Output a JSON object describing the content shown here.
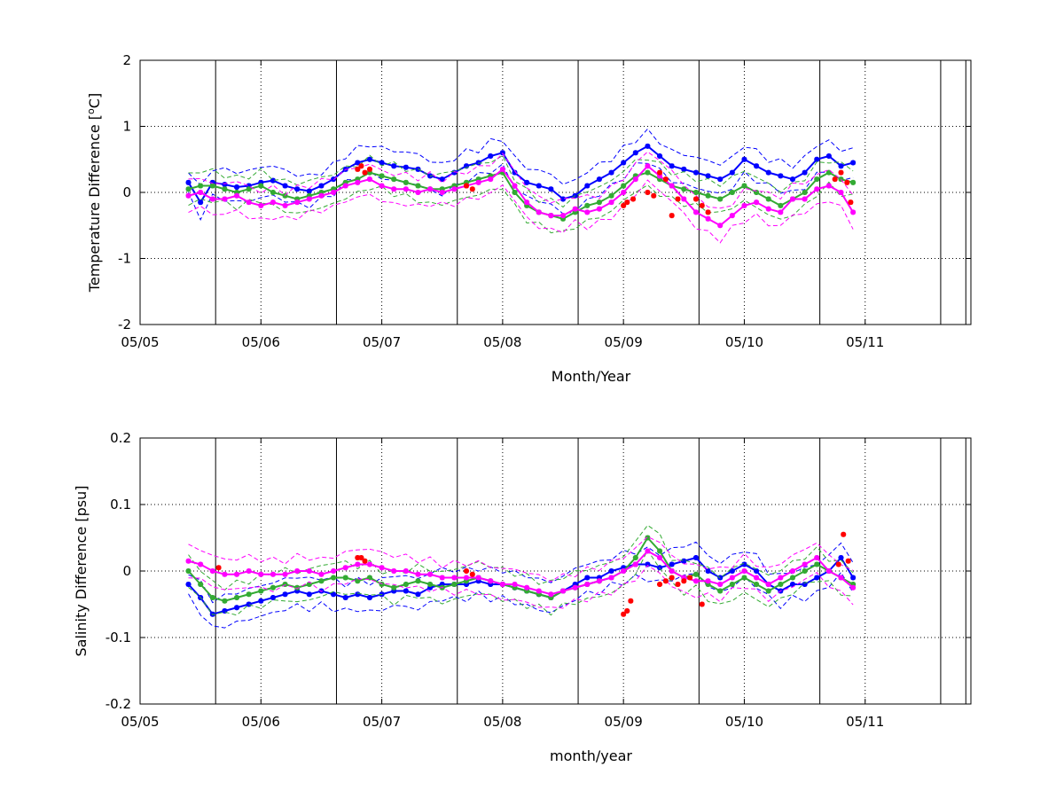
{
  "chart_data": [
    {
      "type": "line",
      "ylabel_main": "Temperature Difference [",
      "ylabel_sup": "o",
      "ylabel_end": "C]",
      "xlabel": "Month/Year",
      "x_ticks": [
        "05/05",
        "05/06",
        "05/07",
        "05/08",
        "05/09",
        "05/10",
        "05/11"
      ],
      "xlim": [
        2005.0,
        2011.875
      ],
      "y_ticks": [
        "-2",
        "-1",
        "0",
        "1",
        "2"
      ],
      "ylim": [
        -2,
        2
      ],
      "grid": true,
      "vertical_markers": [
        2005.625,
        2006.625,
        2007.625,
        2008.625,
        2009.625,
        2010.625,
        2011.625,
        2011.833
      ],
      "series": [
        {
          "color": "#0000ff",
          "marker": "*",
          "band": true,
          "x": [
            2005.4,
            2005.5,
            2005.6,
            2005.7,
            2005.8,
            2005.9,
            2006.0,
            2006.1,
            2006.2,
            2006.3,
            2006.4,
            2006.5,
            2006.6,
            2006.7,
            2006.8,
            2006.9,
            2007.0,
            2007.1,
            2007.2,
            2007.3,
            2007.4,
            2007.5,
            2007.6,
            2007.7,
            2007.8,
            2007.9,
            2008.0,
            2008.1,
            2008.2,
            2008.3,
            2008.4,
            2008.5,
            2008.6,
            2008.7,
            2008.8,
            2008.9,
            2009.0,
            2009.1,
            2009.2,
            2009.3,
            2009.4,
            2009.5,
            2009.6,
            2009.7,
            2009.8,
            2009.9,
            2010.0,
            2010.1,
            2010.2,
            2010.3,
            2010.4,
            2010.5,
            2010.6,
            2010.7,
            2010.8,
            2010.9
          ],
          "y": [
            0.15,
            -0.15,
            0.15,
            0.12,
            0.08,
            0.1,
            0.15,
            0.18,
            0.1,
            0.05,
            0.02,
            0.1,
            0.2,
            0.35,
            0.45,
            0.5,
            0.45,
            0.4,
            0.38,
            0.35,
            0.25,
            0.2,
            0.3,
            0.4,
            0.45,
            0.55,
            0.6,
            0.3,
            0.15,
            0.1,
            0.05,
            -0.1,
            -0.05,
            0.1,
            0.2,
            0.3,
            0.45,
            0.6,
            0.7,
            0.55,
            0.4,
            0.35,
            0.3,
            0.25,
            0.2,
            0.3,
            0.5,
            0.4,
            0.3,
            0.25,
            0.2,
            0.3,
            0.5,
            0.55,
            0.4,
            0.45
          ]
        },
        {
          "color": "#33aa33",
          "marker": "*",
          "band": true,
          "x": [
            2005.4,
            2005.5,
            2005.6,
            2005.7,
            2005.8,
            2005.9,
            2006.0,
            2006.1,
            2006.2,
            2006.3,
            2006.4,
            2006.5,
            2006.6,
            2006.7,
            2006.8,
            2006.9,
            2007.0,
            2007.1,
            2007.2,
            2007.3,
            2007.4,
            2007.5,
            2007.6,
            2007.7,
            2007.8,
            2007.9,
            2008.0,
            2008.1,
            2008.2,
            2008.3,
            2008.4,
            2008.5,
            2008.6,
            2008.7,
            2008.8,
            2008.9,
            2009.0,
            2009.1,
            2009.2,
            2009.3,
            2009.4,
            2009.5,
            2009.6,
            2009.7,
            2009.8,
            2009.9,
            2010.0,
            2010.1,
            2010.2,
            2010.3,
            2010.4,
            2010.5,
            2010.6,
            2010.7,
            2010.8,
            2010.9
          ],
          "y": [
            0.05,
            0.1,
            0.1,
            0.05,
            0.0,
            0.05,
            0.1,
            0.0,
            -0.05,
            -0.1,
            -0.05,
            0.0,
            0.05,
            0.15,
            0.2,
            0.3,
            0.25,
            0.2,
            0.15,
            0.1,
            0.05,
            0.05,
            0.1,
            0.15,
            0.2,
            0.25,
            0.3,
            0.0,
            -0.2,
            -0.3,
            -0.35,
            -0.4,
            -0.3,
            -0.2,
            -0.15,
            -0.05,
            0.1,
            0.25,
            0.3,
            0.2,
            0.1,
            0.05,
            0.0,
            -0.05,
            -0.1,
            0.0,
            0.1,
            0.0,
            -0.1,
            -0.2,
            -0.1,
            0.0,
            0.2,
            0.3,
            0.2,
            0.15
          ]
        },
        {
          "color": "#ff00ff",
          "marker": "*",
          "band": true,
          "x": [
            2005.4,
            2005.5,
            2005.6,
            2005.7,
            2005.8,
            2005.9,
            2006.0,
            2006.1,
            2006.2,
            2006.3,
            2006.4,
            2006.5,
            2006.6,
            2006.7,
            2006.8,
            2006.9,
            2007.0,
            2007.1,
            2007.2,
            2007.3,
            2007.4,
            2007.5,
            2007.6,
            2007.7,
            2007.8,
            2007.9,
            2008.0,
            2008.1,
            2008.2,
            2008.3,
            2008.4,
            2008.5,
            2008.6,
            2008.7,
            2008.8,
            2008.9,
            2009.0,
            2009.1,
            2009.2,
            2009.3,
            2009.4,
            2009.5,
            2009.6,
            2009.7,
            2009.8,
            2009.9,
            2010.0,
            2010.1,
            2010.2,
            2010.3,
            2010.4,
            2010.5,
            2010.6,
            2010.7,
            2010.8,
            2010.9
          ],
          "y": [
            -0.05,
            0.0,
            -0.1,
            -0.1,
            -0.05,
            -0.15,
            -0.2,
            -0.15,
            -0.2,
            -0.15,
            -0.1,
            -0.05,
            0.0,
            0.1,
            0.15,
            0.2,
            0.1,
            0.05,
            0.05,
            0.0,
            0.05,
            0.0,
            0.05,
            0.1,
            0.15,
            0.2,
            0.35,
            0.1,
            -0.15,
            -0.3,
            -0.35,
            -0.35,
            -0.25,
            -0.3,
            -0.25,
            -0.15,
            0.0,
            0.2,
            0.4,
            0.25,
            0.1,
            -0.1,
            -0.3,
            -0.4,
            -0.5,
            -0.35,
            -0.2,
            -0.15,
            -0.25,
            -0.3,
            -0.1,
            -0.1,
            0.05,
            0.1,
            0.0,
            -0.3
          ]
        },
        {
          "color": "#ff0000",
          "marker": "*",
          "band": false,
          "x": [
            2006.8,
            2006.83,
            2006.86,
            2006.9,
            2007.7,
            2007.75,
            2009.0,
            2009.03,
            2009.08,
            2009.2,
            2009.25,
            2009.3,
            2009.35,
            2009.4,
            2009.45,
            2009.6,
            2009.65,
            2009.7,
            2010.75,
            2010.8,
            2010.85,
            2010.88
          ],
          "y": [
            0.35,
            0.4,
            0.3,
            0.35,
            0.1,
            0.05,
            -0.2,
            -0.15,
            -0.1,
            0.0,
            -0.05,
            0.3,
            0.2,
            -0.35,
            -0.1,
            -0.1,
            -0.2,
            -0.3,
            0.2,
            0.3,
            0.15,
            -0.15
          ]
        }
      ]
    },
    {
      "type": "line",
      "ylabel_main": "Salinity Difference [psu]",
      "xlabel": "month/year",
      "x_ticks": [
        "05/05",
        "05/06",
        "05/07",
        "05/08",
        "05/09",
        "05/10",
        "05/11"
      ],
      "xlim": [
        2005.0,
        2011.875
      ],
      "y_ticks": [
        "-0.2",
        "-0.1",
        "0",
        "0.1",
        "0.2"
      ],
      "ylim": [
        -0.2,
        0.2
      ],
      "grid": true,
      "vertical_markers": [
        2005.625,
        2006.625,
        2007.625,
        2008.625,
        2009.625,
        2010.625,
        2011.625,
        2011.833
      ],
      "series": [
        {
          "color": "#0000ff",
          "marker": "*",
          "band": true,
          "x": [
            2005.4,
            2005.5,
            2005.6,
            2005.7,
            2005.8,
            2005.9,
            2006.0,
            2006.1,
            2006.2,
            2006.3,
            2006.4,
            2006.5,
            2006.6,
            2006.7,
            2006.8,
            2006.9,
            2007.0,
            2007.1,
            2007.2,
            2007.3,
            2007.4,
            2007.5,
            2007.6,
            2007.7,
            2007.8,
            2007.9,
            2008.0,
            2008.1,
            2008.2,
            2008.3,
            2008.4,
            2008.5,
            2008.6,
            2008.7,
            2008.8,
            2008.9,
            2009.0,
            2009.1,
            2009.2,
            2009.3,
            2009.4,
            2009.5,
            2009.6,
            2009.7,
            2009.8,
            2009.9,
            2010.0,
            2010.1,
            2010.2,
            2010.3,
            2010.4,
            2010.5,
            2010.6,
            2010.7,
            2010.8,
            2010.9
          ],
          "y": [
            -0.02,
            -0.04,
            -0.065,
            -0.06,
            -0.055,
            -0.05,
            -0.045,
            -0.04,
            -0.035,
            -0.03,
            -0.035,
            -0.03,
            -0.035,
            -0.04,
            -0.035,
            -0.04,
            -0.035,
            -0.03,
            -0.03,
            -0.035,
            -0.025,
            -0.02,
            -0.02,
            -0.02,
            -0.015,
            -0.02,
            -0.02,
            -0.025,
            -0.03,
            -0.035,
            -0.04,
            -0.03,
            -0.02,
            -0.01,
            -0.01,
            0.0,
            0.005,
            0.01,
            0.01,
            0.005,
            0.01,
            0.015,
            0.02,
            0.0,
            -0.01,
            0.0,
            0.01,
            0.0,
            -0.02,
            -0.03,
            -0.02,
            -0.02,
            -0.01,
            0.0,
            0.02,
            -0.01
          ]
        },
        {
          "color": "#33aa33",
          "marker": "*",
          "band": true,
          "x": [
            2005.4,
            2005.5,
            2005.6,
            2005.7,
            2005.8,
            2005.9,
            2006.0,
            2006.1,
            2006.2,
            2006.3,
            2006.4,
            2006.5,
            2006.6,
            2006.7,
            2006.8,
            2006.9,
            2007.0,
            2007.1,
            2007.2,
            2007.3,
            2007.4,
            2007.5,
            2007.6,
            2007.7,
            2007.8,
            2007.9,
            2008.0,
            2008.1,
            2008.2,
            2008.3,
            2008.4,
            2008.5,
            2008.6,
            2008.7,
            2008.8,
            2008.9,
            2009.0,
            2009.1,
            2009.2,
            2009.3,
            2009.4,
            2009.5,
            2009.6,
            2009.7,
            2009.8,
            2009.9,
            2010.0,
            2010.1,
            2010.2,
            2010.3,
            2010.4,
            2010.5,
            2010.6,
            2010.7,
            2010.8,
            2010.9
          ],
          "y": [
            0.0,
            -0.02,
            -0.04,
            -0.045,
            -0.04,
            -0.035,
            -0.03,
            -0.025,
            -0.02,
            -0.025,
            -0.02,
            -0.015,
            -0.01,
            -0.01,
            -0.015,
            -0.01,
            -0.02,
            -0.025,
            -0.02,
            -0.015,
            -0.02,
            -0.025,
            -0.02,
            -0.015,
            -0.01,
            -0.015,
            -0.02,
            -0.025,
            -0.03,
            -0.035,
            -0.04,
            -0.03,
            -0.025,
            -0.02,
            -0.015,
            -0.01,
            0.0,
            0.02,
            0.05,
            0.03,
            0.0,
            -0.01,
            -0.005,
            -0.02,
            -0.03,
            -0.02,
            -0.01,
            -0.02,
            -0.03,
            -0.02,
            -0.01,
            0.0,
            0.01,
            0.0,
            -0.01,
            -0.02
          ]
        },
        {
          "color": "#ff00ff",
          "marker": "*",
          "band": true,
          "x": [
            2005.4,
            2005.5,
            2005.6,
            2005.7,
            2005.8,
            2005.9,
            2006.0,
            2006.1,
            2006.2,
            2006.3,
            2006.4,
            2006.5,
            2006.6,
            2006.7,
            2006.8,
            2006.9,
            2007.0,
            2007.1,
            2007.2,
            2007.3,
            2007.4,
            2007.5,
            2007.6,
            2007.7,
            2007.8,
            2007.9,
            2008.0,
            2008.1,
            2008.2,
            2008.3,
            2008.4,
            2008.5,
            2008.6,
            2008.7,
            2008.8,
            2008.9,
            2009.0,
            2009.1,
            2009.2,
            2009.3,
            2009.4,
            2009.5,
            2009.6,
            2009.7,
            2009.8,
            2009.9,
            2010.0,
            2010.1,
            2010.2,
            2010.3,
            2010.4,
            2010.5,
            2010.6,
            2010.7,
            2010.8,
            2010.9
          ],
          "y": [
            0.015,
            0.01,
            0.0,
            -0.005,
            -0.005,
            0.0,
            -0.005,
            -0.005,
            -0.005,
            0.0,
            0.0,
            -0.005,
            0.0,
            0.005,
            0.01,
            0.01,
            0.005,
            0.0,
            0.0,
            -0.005,
            -0.005,
            -0.01,
            -0.01,
            -0.01,
            -0.01,
            -0.015,
            -0.02,
            -0.02,
            -0.025,
            -0.03,
            -0.035,
            -0.03,
            -0.025,
            -0.02,
            -0.015,
            -0.01,
            0.0,
            0.01,
            0.03,
            0.02,
            0.0,
            -0.01,
            -0.015,
            -0.015,
            -0.02,
            -0.01,
            0.0,
            -0.01,
            -0.02,
            -0.01,
            0.0,
            0.01,
            0.02,
            0.0,
            -0.01,
            -0.025
          ]
        },
        {
          "color": "#ff0000",
          "marker": "*",
          "band": false,
          "x": [
            2005.65,
            2006.8,
            2006.83,
            2006.86,
            2007.7,
            2007.75,
            2009.0,
            2009.03,
            2009.06,
            2009.3,
            2009.35,
            2009.4,
            2009.45,
            2009.5,
            2009.55,
            2009.65,
            2010.78,
            2010.82,
            2010.86
          ],
          "y": [
            0.005,
            0.02,
            0.02,
            0.015,
            0.0,
            -0.005,
            -0.065,
            -0.06,
            -0.045,
            -0.02,
            -0.015,
            -0.01,
            -0.02,
            -0.015,
            -0.01,
            -0.05,
            0.01,
            0.055,
            0.015
          ]
        }
      ]
    }
  ]
}
